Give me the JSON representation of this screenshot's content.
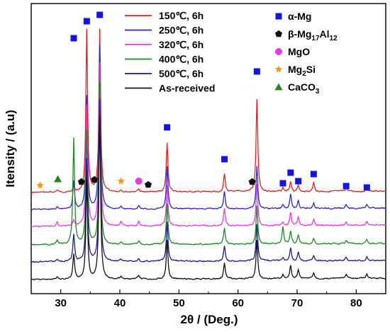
{
  "chart_data": {
    "type": "line",
    "xlabel": "2θ / (Deg.)",
    "ylabel": "Itensity / (a.u)",
    "xlim": [
      25,
      85
    ],
    "x_ticks": [
      "30",
      "40",
      "50",
      "60",
      "70",
      "80"
    ],
    "y_ticks_labeled": false,
    "series": [
      {
        "name": "150℃, 6h",
        "color": "#e8211d",
        "offset": 5
      },
      {
        "name": "250℃, 6h",
        "color": "#2a2ad4",
        "offset": 4
      },
      {
        "name": "320℃, 6h",
        "color": "#e53ce0",
        "offset": 3
      },
      {
        "name": "400℃, 6h",
        "color": "#1f8a1f",
        "offset": 2
      },
      {
        "name": "500℃, 6h",
        "color": "#1c1c8a",
        "offset": 1
      },
      {
        "name": "As-received",
        "color": "#111111",
        "offset": 0
      }
    ],
    "peaks": [
      {
        "x": 32.2,
        "h": [
          9,
          40,
          9,
          150,
          38,
          35
        ]
      },
      {
        "x": 34.4,
        "h": [
          230,
          160,
          170,
          160,
          145,
          140
        ]
      },
      {
        "x": 36.6,
        "h": [
          230,
          230,
          230,
          230,
          230,
          230
        ]
      },
      {
        "x": 48.0,
        "h": [
          70,
          60,
          58,
          58,
          55,
          55
        ]
      },
      {
        "x": 57.7,
        "h": [
          25,
          25,
          25,
          22,
          22,
          22
        ]
      },
      {
        "x": 63.2,
        "h": [
          130,
          60,
          58,
          55,
          52,
          55
        ]
      },
      {
        "x": 67.6,
        "h": [
          5,
          5,
          5,
          25,
          5,
          5
        ]
      },
      {
        "x": 68.9,
        "h": [
          15,
          20,
          18,
          18,
          18,
          18
        ]
      },
      {
        "x": 70.2,
        "h": [
          8,
          12,
          12,
          12,
          12,
          12
        ]
      },
      {
        "x": 72.8,
        "h": [
          12,
          8,
          8,
          8,
          8,
          8
        ]
      },
      {
        "x": 78.3,
        "h": [
          5,
          5,
          5,
          5,
          5,
          5
        ]
      },
      {
        "x": 81.8,
        "h": [
          5,
          5,
          5,
          5,
          5,
          5
        ]
      },
      {
        "x": 29.4,
        "h": [
          3,
          3,
          6,
          6,
          3,
          3
        ]
      },
      {
        "x": 43.2,
        "h": [
          5,
          5,
          8,
          5,
          5,
          5
        ]
      },
      {
        "x": 40.2,
        "h": [
          3,
          3,
          6,
          3,
          3,
          3
        ]
      }
    ],
    "markers": [
      {
        "x": 32.2,
        "y": 54,
        "symbol": "square",
        "color": "#1515e0"
      },
      {
        "x": 34.4,
        "y": 30,
        "symbol": "square",
        "color": "#1515e0"
      },
      {
        "x": 36.6,
        "y": 21,
        "symbol": "square",
        "color": "#1515e0"
      },
      {
        "x": 48.0,
        "y": 180,
        "symbol": "square",
        "color": "#1515e0"
      },
      {
        "x": 57.7,
        "y": 225,
        "symbol": "square",
        "color": "#1515e0"
      },
      {
        "x": 63.2,
        "y": 101,
        "symbol": "square",
        "color": "#1515e0"
      },
      {
        "x": 67.6,
        "y": 259,
        "symbol": "square",
        "color": "#1515e0"
      },
      {
        "x": 68.9,
        "y": 244,
        "symbol": "square",
        "color": "#1515e0"
      },
      {
        "x": 70.2,
        "y": 256,
        "symbol": "square",
        "color": "#1515e0"
      },
      {
        "x": 72.8,
        "y": 246,
        "symbol": "square",
        "color": "#1515e0"
      },
      {
        "x": 78.3,
        "y": 263,
        "symbol": "square",
        "color": "#1515e0"
      },
      {
        "x": 81.8,
        "y": 265,
        "symbol": "square",
        "color": "#1515e0"
      },
      {
        "x": 33.5,
        "y": 257,
        "symbol": "pentagon",
        "color": "#111111"
      },
      {
        "x": 35.7,
        "y": 254,
        "symbol": "pentagon",
        "color": "#111111"
      },
      {
        "x": 44.8,
        "y": 261,
        "symbol": "pentagon",
        "color": "#111111"
      },
      {
        "x": 62.4,
        "y": 257,
        "symbol": "pentagon",
        "color": "#111111"
      },
      {
        "x": 43.2,
        "y": 256,
        "symbol": "circle",
        "color": "#e53ce0"
      },
      {
        "x": 26.5,
        "y": 262,
        "symbol": "star",
        "color": "#f5941f"
      },
      {
        "x": 40.2,
        "y": 256,
        "symbol": "star",
        "color": "#f5941f"
      },
      {
        "x": 29.5,
        "y": 253,
        "symbol": "triangle",
        "color": "#1f8a1f"
      }
    ],
    "phase_legend": [
      {
        "symbol": "square",
        "color": "#1515e0",
        "label": "α-Mg",
        "sub": ""
      },
      {
        "symbol": "pentagon",
        "color": "#111111",
        "label": "β-Mg",
        "sub": "17",
        "label2": "Al",
        "sub2": "12"
      },
      {
        "symbol": "circle",
        "color": "#e53ce0",
        "label": "MgO",
        "sub": ""
      },
      {
        "symbol": "star",
        "color": "#f5941f",
        "label": "Mg",
        "sub": "2",
        "label2": "Si",
        "sub2": ""
      },
      {
        "symbol": "triangle",
        "color": "#1f8a1f",
        "label": "CaCO",
        "sub": "3",
        "label2": "",
        "sub2": ""
      }
    ],
    "legend_position": "top-right"
  }
}
